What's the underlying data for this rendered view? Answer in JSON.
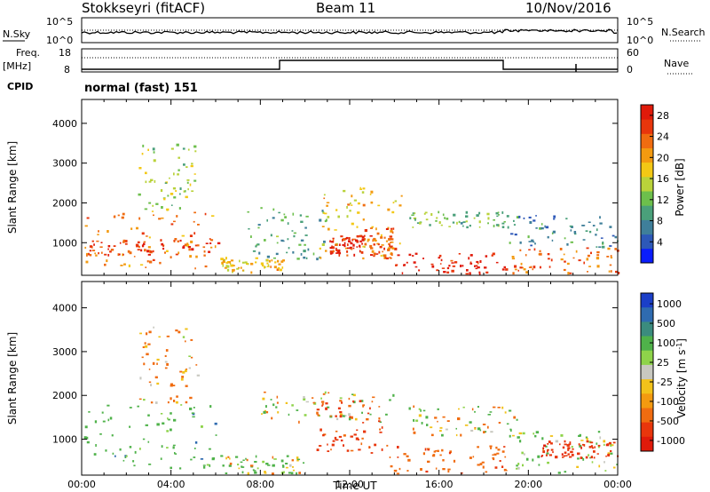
{
  "header": {
    "title": "Stokkseyri (fitACF)",
    "beam": "Beam 11",
    "date": "10/Nov/2016"
  },
  "noise_panel": {
    "left_label": "N.Sky",
    "right_label": "N.Search",
    "left_ticks": [
      "10^5",
      "10^0"
    ],
    "right_ticks": [
      "10^5",
      "10^0"
    ]
  },
  "freq_panel": {
    "left_label_1": "Freq.",
    "left_label_2": "[MHz]",
    "left_ticks": [
      "18",
      "8"
    ],
    "right_ticks": [
      "60",
      "0"
    ],
    "right_label": "Nave",
    "cpid_label": "CPID",
    "cpid_value": "normal (fast) 151"
  },
  "chart_data": [
    {
      "type": "heatmap",
      "title": "Power",
      "ylabel": "Slant Range [km]",
      "xlabel": "Time UT",
      "x_ticks": [
        "00:00",
        "04:00",
        "08:00",
        "12:00",
        "16:00",
        "20:00",
        "00:00"
      ],
      "y_ticks": [
        1000,
        2000,
        3000,
        4000
      ],
      "ylim": [
        180,
        4600
      ],
      "xlim_hours": [
        0,
        24
      ],
      "colorbar": {
        "label": "Power [dB]",
        "ticks": [
          4,
          8,
          12,
          16,
          20,
          24,
          28
        ],
        "range": [
          0,
          30
        ],
        "colors": [
          "#0a1dfc",
          "#2d58b8",
          "#3f7f9a",
          "#4aa07a",
          "#6dbf4c",
          "#b9d23a",
          "#f3c815",
          "#f39a10",
          "#f06c10",
          "#e8360c",
          "#e01a0a"
        ]
      },
      "regions": [
        {
          "t0": 0.1,
          "t1": 6.0,
          "r0": 350,
          "r1": 1800,
          "value": 22
        },
        {
          "t0": 0.2,
          "t1": 6.1,
          "r0": 700,
          "r1": 1100,
          "value": 26
        },
        {
          "t0": 2.5,
          "t1": 5.3,
          "r0": 1800,
          "r1": 3600,
          "value": 14
        },
        {
          "t0": 6.2,
          "t1": 9.0,
          "r0": 280,
          "r1": 650,
          "value": 18
        },
        {
          "t0": 7.4,
          "t1": 11.0,
          "r0": 600,
          "r1": 1900,
          "value": 10
        },
        {
          "t0": 10.5,
          "t1": 14.3,
          "r0": 600,
          "r1": 2400,
          "value": 18
        },
        {
          "t0": 11.0,
          "t1": 12.5,
          "r0": 700,
          "r1": 1200,
          "value": 27
        },
        {
          "t0": 12.5,
          "t1": 14.0,
          "r0": 600,
          "r1": 1400,
          "value": 24
        },
        {
          "t0": 14.0,
          "t1": 19.0,
          "r0": 230,
          "r1": 750,
          "value": 28
        },
        {
          "t0": 14.5,
          "t1": 19.5,
          "r0": 1400,
          "r1": 1800,
          "value": 12
        },
        {
          "t0": 19.0,
          "t1": 24.0,
          "r0": 230,
          "r1": 900,
          "value": 23
        },
        {
          "t0": 19.0,
          "t1": 24.0,
          "r0": 900,
          "r1": 1700,
          "value": 8
        }
      ]
    },
    {
      "type": "heatmap",
      "title": "Velocity",
      "ylabel": "Slant Range [km]",
      "xlabel": "Time UT",
      "x_ticks": [
        "00:00",
        "04:00",
        "08:00",
        "12:00",
        "16:00",
        "20:00",
        "00:00"
      ],
      "y_ticks": [
        1000,
        2000,
        3000,
        4000
      ],
      "ylim": [
        180,
        4600
      ],
      "xlim_hours": [
        0,
        24
      ],
      "colorbar": {
        "label": "Velocity [m s^-1]",
        "ticks": [
          "1000",
          "500",
          "100",
          "25",
          "-25",
          "-100",
          "-500",
          "-1000"
        ],
        "colors": [
          "#1b3fc8",
          "#2f6bb0",
          "#3b8c7e",
          "#4fb24a",
          "#8ed34a",
          "#c8c8c0",
          "#f2c21a",
          "#f39a10",
          "#f06c10",
          "#e8360c",
          "#e01a0a"
        ]
      },
      "regions": [
        {
          "t0": 0.1,
          "t1": 6.0,
          "r0": 350,
          "r1": 1800,
          "value": 300
        },
        {
          "t0": 2.5,
          "t1": 5.3,
          "r0": 1800,
          "r1": 3600,
          "value": -200
        },
        {
          "t0": 6.2,
          "t1": 10.0,
          "r0": 230,
          "r1": 650,
          "value": 60
        },
        {
          "t0": 8.0,
          "t1": 14.0,
          "r0": 1400,
          "r1": 2100,
          "value": 0
        },
        {
          "t0": 10.5,
          "t1": 13.5,
          "r0": 700,
          "r1": 1900,
          "value": -600
        },
        {
          "t0": 13.5,
          "t1": 19.0,
          "r0": 230,
          "r1": 900,
          "value": -350
        },
        {
          "t0": 14.5,
          "t1": 19.5,
          "r0": 1100,
          "r1": 1800,
          "value": 5
        },
        {
          "t0": 19.0,
          "t1": 24.0,
          "r0": 230,
          "r1": 1200,
          "value": 150
        },
        {
          "t0": 20.5,
          "t1": 24.0,
          "r0": 600,
          "r1": 1000,
          "value": -800
        }
      ]
    }
  ]
}
